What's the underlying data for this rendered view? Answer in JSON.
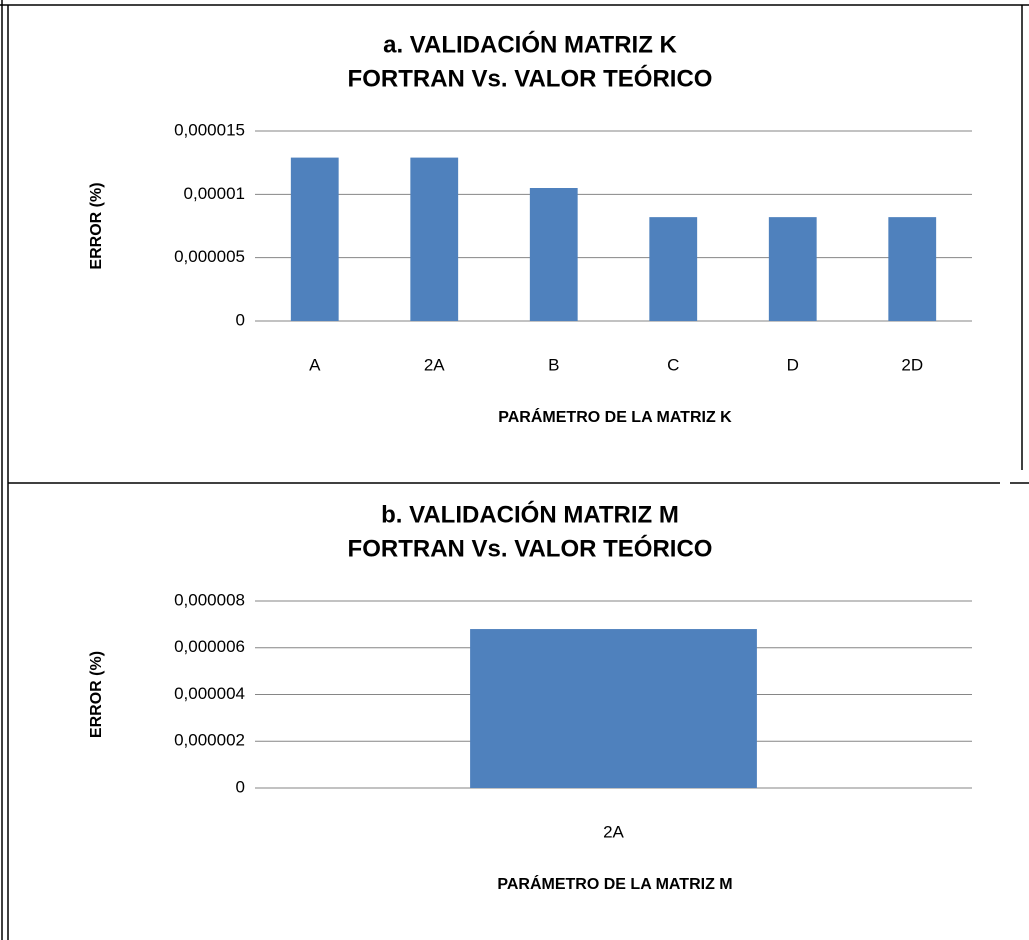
{
  "chart_data": [
    {
      "type": "bar",
      "title": "a. VALIDACIÓN MATRIZ K",
      "subtitle": "FORTRAN Vs. VALOR TEÓRICO",
      "x_label": "PARÁMETRO DE LA MATRIZ K",
      "y_label": "ERROR (%)",
      "categories": [
        "A",
        "2A",
        "B",
        "C",
        "D",
        "2D"
      ],
      "values": [
        1.29e-05,
        1.29e-05,
        1.05e-05,
        8.2e-06,
        8.2e-06,
        8.2e-06
      ],
      "color": "#4f81bd",
      "ylim": [
        0,
        1.5e-05
      ],
      "yticks": [
        0,
        {
          "value": 5e-06,
          "label": "0,000005"
        },
        {
          "value": 1e-05,
          "label": "0,00001"
        },
        {
          "value": 1.5e-05,
          "label": "0,000015"
        }
      ],
      "grid": true
    },
    {
      "type": "bar",
      "title": "b. VALIDACIÓN MATRIZ M",
      "subtitle": "FORTRAN Vs. VALOR TEÓRICO",
      "x_label": "PARÁMETRO DE LA MATRIZ M",
      "y_label": "ERROR (%)",
      "categories": [
        "2A"
      ],
      "values": [
        6.8e-06
      ],
      "color": "#4f81bd",
      "ylim": [
        0,
        8e-06
      ],
      "yticks": [
        0,
        {
          "value": 2e-06,
          "label": "0,000002"
        },
        {
          "value": 4e-06,
          "label": "0,000004"
        },
        {
          "value": 6e-06,
          "label": "0,000006"
        },
        {
          "value": 8e-06,
          "label": "0,000008"
        }
      ],
      "grid": true
    }
  ]
}
